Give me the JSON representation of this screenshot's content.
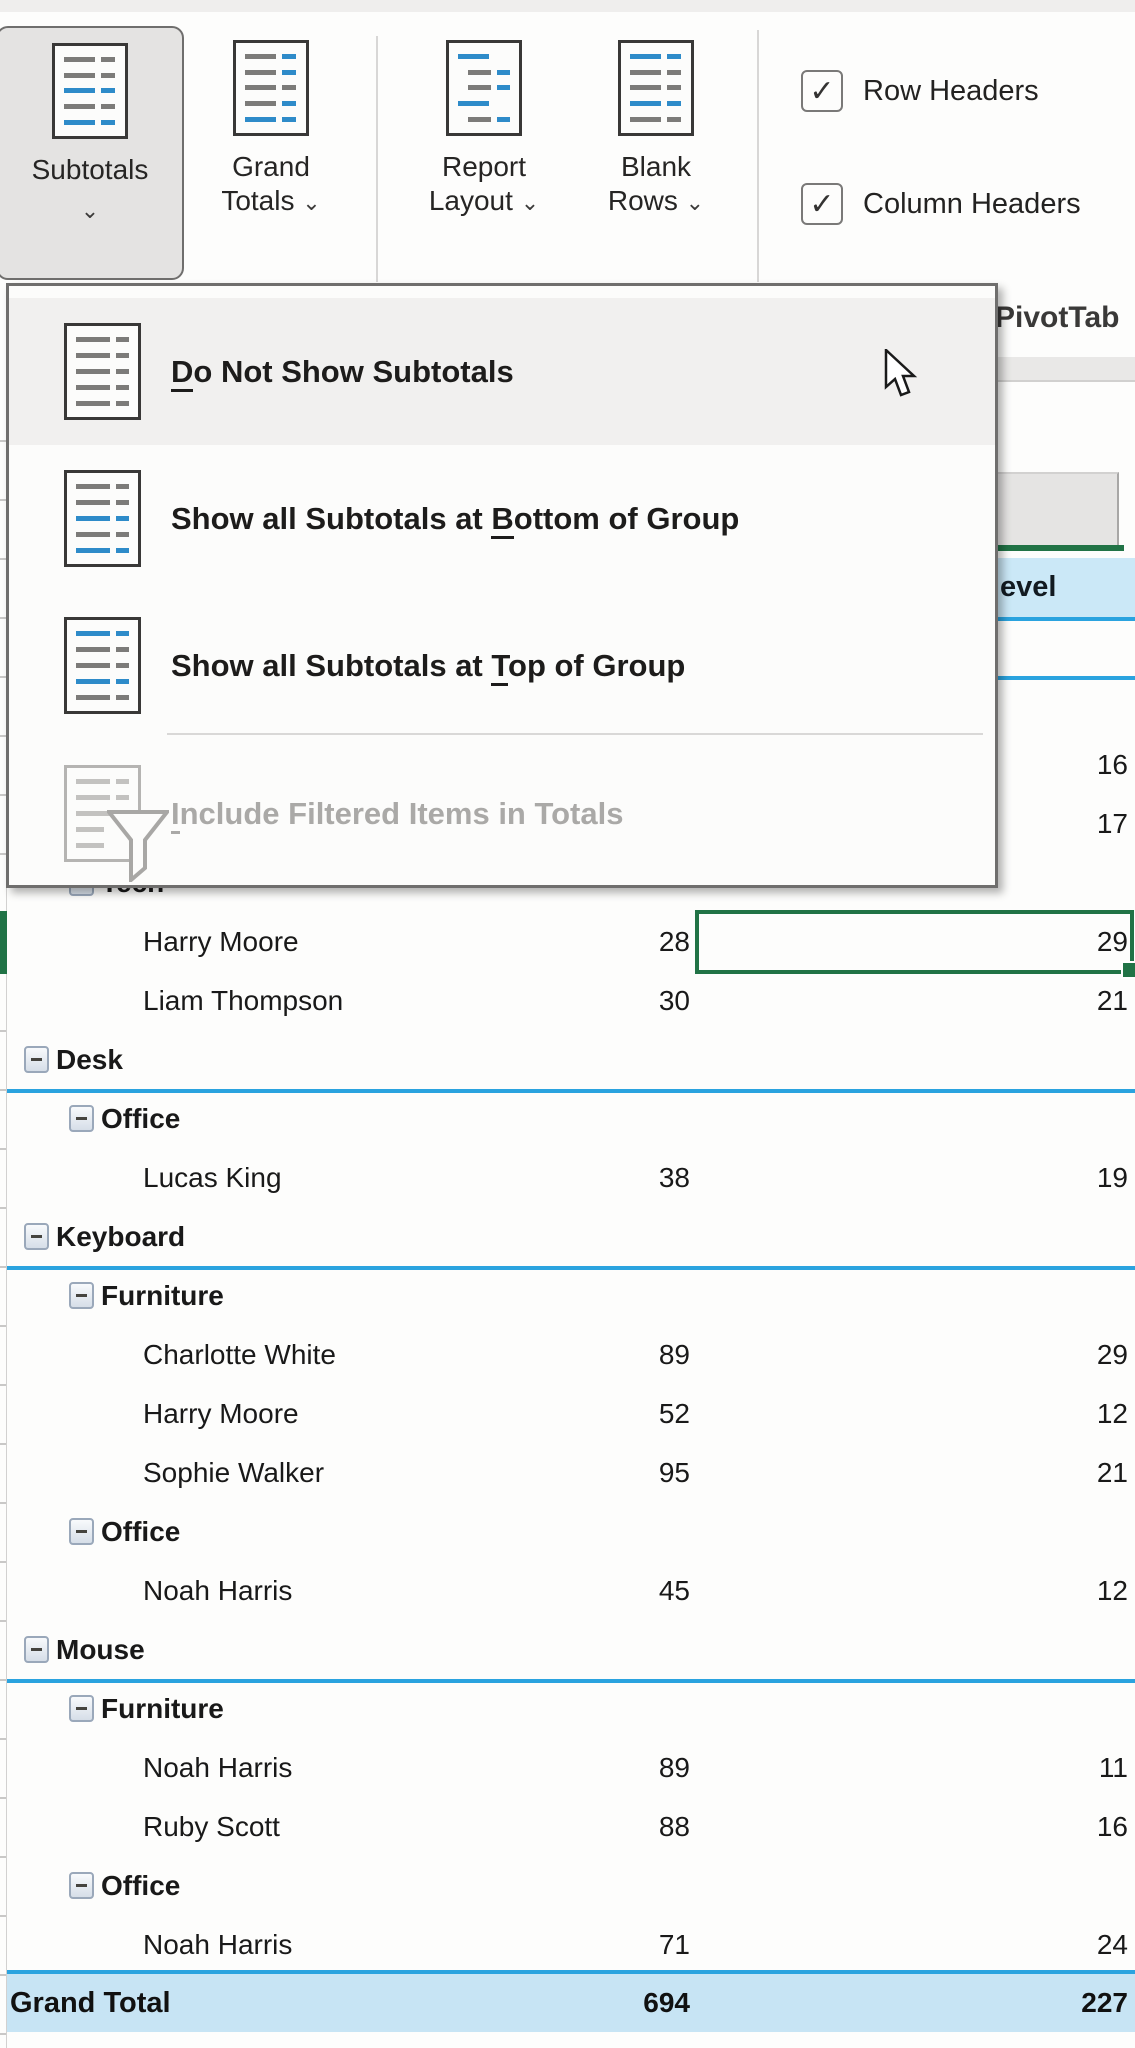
{
  "ribbon": {
    "chevron": "⌄",
    "check_glyph": "✓",
    "subtotals": {
      "label": "Subtotals",
      "pressed": true
    },
    "grand_totals": {
      "line1": "Grand",
      "line2": "Totals"
    },
    "report_layout": {
      "line1": "Report",
      "line2": "Layout"
    },
    "blank_rows": {
      "line1": "Blank",
      "line2": "Rows"
    },
    "row_headers": {
      "label": "Row Headers",
      "checked": true
    },
    "column_headers": {
      "label": "Column Headers",
      "checked": true
    },
    "pivottable_partial_label": "PivotTab"
  },
  "menu": {
    "items": [
      {
        "pre": "",
        "accel": "D",
        "post": "o Not Show Subtotals",
        "hovered": true,
        "disabled": false
      },
      {
        "pre": "Show all Subtotals at ",
        "accel": "B",
        "post": "ottom of Group",
        "hovered": false,
        "disabled": false
      },
      {
        "pre": "Show all Subtotals at ",
        "accel": "T",
        "post": "op of Group",
        "hovered": false,
        "disabled": false
      },
      {
        "pre": "",
        "accel": "I",
        "post": "nclude Filtered Items in Totals",
        "hovered": false,
        "disabled": true
      }
    ]
  },
  "sheet": {
    "column_header_partial": "evel",
    "rows": [
      {
        "level": 1,
        "label": "",
        "quantity": "",
        "stock_level": "",
        "blue_line_below": true,
        "selected": false
      },
      {
        "level": 2,
        "label": "",
        "quantity": "",
        "stock_level": "",
        "blue_line_below": false,
        "selected": false
      },
      {
        "level": 3,
        "label": "",
        "quantity": "",
        "stock_level": "16",
        "blue_line_below": false,
        "selected": false
      },
      {
        "level": 3,
        "label": "",
        "quantity": "",
        "stock_level": "17",
        "blue_line_below": false,
        "selected": false
      },
      {
        "level": 2,
        "label": "Tech",
        "quantity": "",
        "stock_level": "",
        "blue_line_below": false,
        "selected": false
      },
      {
        "level": 3,
        "label": "Harry Moore",
        "quantity": "28",
        "stock_level": "29",
        "blue_line_below": false,
        "selected": true
      },
      {
        "level": 3,
        "label": "Liam Thompson",
        "quantity": "30",
        "stock_level": "21",
        "blue_line_below": false,
        "selected": false
      },
      {
        "level": 1,
        "label": "Desk",
        "quantity": "",
        "stock_level": "",
        "blue_line_below": true,
        "selected": false
      },
      {
        "level": 2,
        "label": "Office",
        "quantity": "",
        "stock_level": "",
        "blue_line_below": false,
        "selected": false
      },
      {
        "level": 3,
        "label": "Lucas King",
        "quantity": "38",
        "stock_level": "19",
        "blue_line_below": false,
        "selected": false
      },
      {
        "level": 1,
        "label": "Keyboard",
        "quantity": "",
        "stock_level": "",
        "blue_line_below": true,
        "selected": false
      },
      {
        "level": 2,
        "label": "Furniture",
        "quantity": "",
        "stock_level": "",
        "blue_line_below": false,
        "selected": false
      },
      {
        "level": 3,
        "label": "Charlotte White",
        "quantity": "89",
        "stock_level": "29",
        "blue_line_below": false,
        "selected": false
      },
      {
        "level": 3,
        "label": "Harry Moore",
        "quantity": "52",
        "stock_level": "12",
        "blue_line_below": false,
        "selected": false
      },
      {
        "level": 3,
        "label": "Sophie Walker",
        "quantity": "95",
        "stock_level": "21",
        "blue_line_below": false,
        "selected": false
      },
      {
        "level": 2,
        "label": "Office",
        "quantity": "",
        "stock_level": "",
        "blue_line_below": false,
        "selected": false
      },
      {
        "level": 3,
        "label": "Noah Harris",
        "quantity": "45",
        "stock_level": "12",
        "blue_line_below": false,
        "selected": false
      },
      {
        "level": 1,
        "label": "Mouse",
        "quantity": "",
        "stock_level": "",
        "blue_line_below": true,
        "selected": false
      },
      {
        "level": 2,
        "label": "Furniture",
        "quantity": "",
        "stock_level": "",
        "blue_line_below": false,
        "selected": false
      },
      {
        "level": 3,
        "label": "Noah Harris",
        "quantity": "89",
        "stock_level": "11",
        "blue_line_below": false,
        "selected": false
      },
      {
        "level": 3,
        "label": "Ruby Scott",
        "quantity": "88",
        "stock_level": "16",
        "blue_line_below": false,
        "selected": false
      },
      {
        "level": 2,
        "label": "Office",
        "quantity": "",
        "stock_level": "",
        "blue_line_below": false,
        "selected": false
      },
      {
        "level": 3,
        "label": "Noah Harris",
        "quantity": "71",
        "stock_level": "24",
        "blue_line_below": false,
        "selected": false
      }
    ],
    "grand_total": {
      "label": "Grand Total",
      "quantity": "694",
      "stock_level": "227"
    }
  },
  "colors": {
    "accent_blue": "#2AA3DF",
    "selection_green": "#217346",
    "header_fill": "#CBE8F7",
    "grand_total_fill": "#C7E4F4",
    "icon_blue": "#2E8BC9"
  }
}
